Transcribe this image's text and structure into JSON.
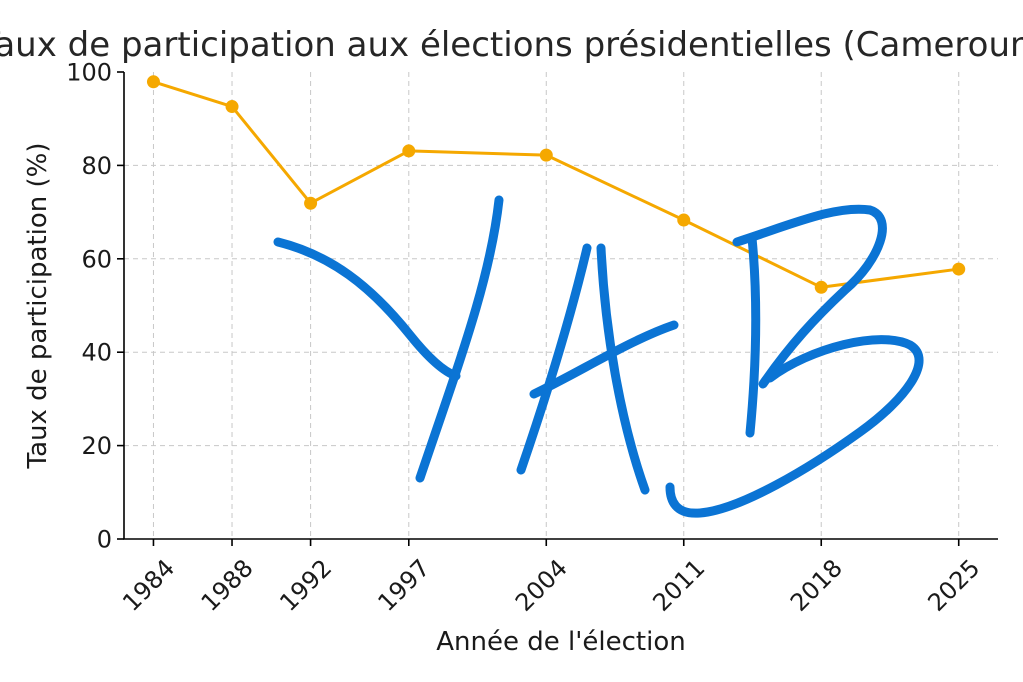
{
  "chart_data": {
    "type": "line",
    "title": "Taux de participation aux élections présidentielles (Cameroun)",
    "xlabel": "Année de l'élection",
    "ylabel": "Taux de participation (%)",
    "categories": [
      "1984",
      "1988",
      "1992",
      "1997",
      "2004",
      "2011",
      "2018",
      "2025"
    ],
    "x": [
      1984,
      1988,
      1992,
      1997,
      2004,
      2011,
      2018,
      2025
    ],
    "series": [
      {
        "values": [
          97.9,
          92.6,
          71.9,
          83.1,
          82.2,
          68.3,
          53.9,
          57.8
        ],
        "color": "#f5a800"
      }
    ],
    "yticks": [
      "0",
      "20",
      "40",
      "60",
      "80",
      "100"
    ],
    "ylim": [
      0,
      100
    ],
    "xlim": [
      1982.5,
      2027
    ],
    "grid": true,
    "legend": "none",
    "annotations": [
      "YAB"
    ],
    "annotation_color": "#0b74d4"
  }
}
